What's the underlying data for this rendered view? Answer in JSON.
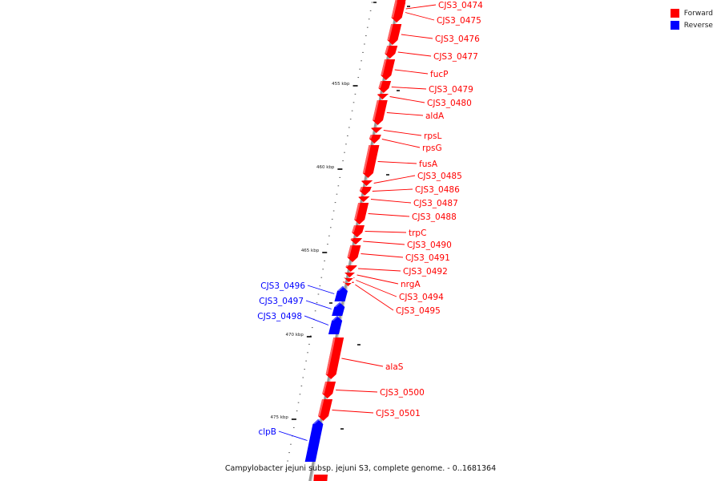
{
  "caption": "Campylobacter jejuni subsp. jejuni S3, complete genome. - 0..1681364",
  "legend": {
    "forward_label": "Forward",
    "reverse_label": "Reverse",
    "forward_color": "#ff0000",
    "reverse_color": "#0000ff"
  },
  "backbone_color": "#999999",
  "scale": {
    "unit": "kbp",
    "major_ticks_kbp": [
      455,
      460,
      465,
      470,
      475
    ]
  },
  "genes": [
    {
      "name": "CJS3_0474",
      "strand": "forward"
    },
    {
      "name": "CJS3_0475",
      "strand": "forward"
    },
    {
      "name": "CJS3_0476",
      "strand": "forward"
    },
    {
      "name": "CJS3_0477",
      "strand": "forward"
    },
    {
      "name": "fucP",
      "strand": "forward"
    },
    {
      "name": "CJS3_0479",
      "strand": "forward"
    },
    {
      "name": "CJS3_0480",
      "strand": "forward"
    },
    {
      "name": "aldA",
      "strand": "forward"
    },
    {
      "name": "rpsL",
      "strand": "forward"
    },
    {
      "name": "rpsG",
      "strand": "forward"
    },
    {
      "name": "fusA",
      "strand": "forward"
    },
    {
      "name": "CJS3_0485",
      "strand": "forward"
    },
    {
      "name": "CJS3_0486",
      "strand": "forward"
    },
    {
      "name": "CJS3_0487",
      "strand": "forward"
    },
    {
      "name": "CJS3_0488",
      "strand": "forward"
    },
    {
      "name": "trpC",
      "strand": "forward"
    },
    {
      "name": "CJS3_0490",
      "strand": "forward"
    },
    {
      "name": "CJS3_0491",
      "strand": "forward"
    },
    {
      "name": "CJS3_0492",
      "strand": "forward"
    },
    {
      "name": "nrgA",
      "strand": "forward"
    },
    {
      "name": "CJS3_0494",
      "strand": "forward"
    },
    {
      "name": "CJS3_0495",
      "strand": "forward"
    },
    {
      "name": "CJS3_0496",
      "strand": "reverse"
    },
    {
      "name": "CJS3_0497",
      "strand": "reverse"
    },
    {
      "name": "CJS3_0498",
      "strand": "reverse"
    },
    {
      "name": "alaS",
      "strand": "forward"
    },
    {
      "name": "CJS3_0500",
      "strand": "forward"
    },
    {
      "name": "CJS3_0501",
      "strand": "forward"
    },
    {
      "name": "clpB",
      "strand": "reverse"
    }
  ]
}
